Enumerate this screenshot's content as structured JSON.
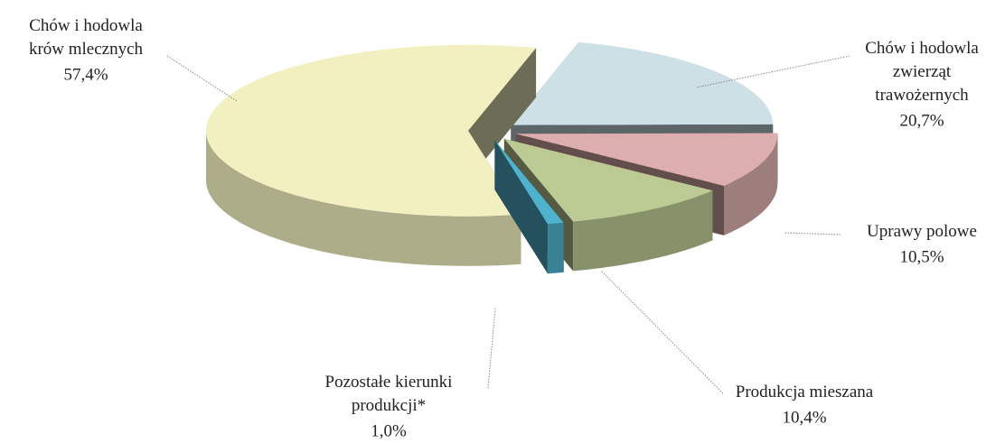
{
  "chart_data": {
    "type": "pie",
    "categories": [
      "Chów i hodowla zwierząt trawożernych",
      "Uprawy polowe",
      "Produkcja mieszana",
      "Pozostałe kierunki produkcji*",
      "Chów i hodowla krów mlecznych"
    ],
    "values": [
      20.7,
      10.5,
      10.4,
      1.0,
      57.4
    ],
    "value_labels": [
      "20,7%",
      "10,5%",
      "10,4%",
      "1,0%",
      "57,4%"
    ],
    "colors": [
      "#cde0e6",
      "#dcaeae",
      "#bccb94",
      "#4fb3cf",
      "#f2f0c0"
    ]
  }
}
